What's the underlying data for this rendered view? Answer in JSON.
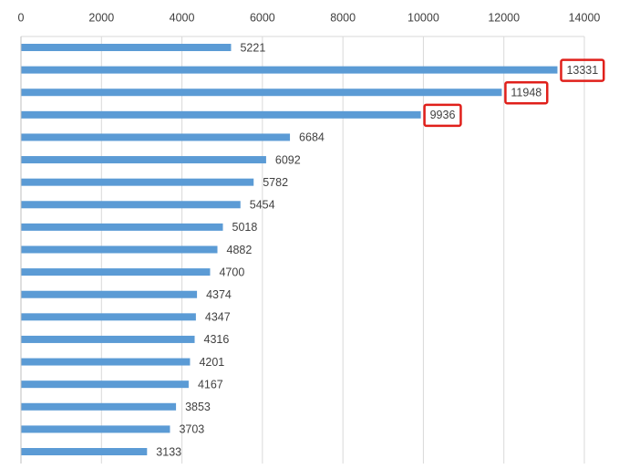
{
  "chart_data": {
    "type": "barh",
    "categories": [
      null,
      null,
      null,
      null,
      null,
      null,
      null,
      null,
      null,
      null,
      null,
      null,
      null,
      null,
      null,
      null,
      null,
      null,
      null
    ],
    "values": [
      5221,
      13331,
      11948,
      9936,
      6684,
      6092,
      5782,
      5454,
      5018,
      4882,
      4700,
      4374,
      4347,
      4316,
      4201,
      4167,
      3853,
      3703,
      3133
    ],
    "color": "#5b9bd5",
    "xlim": [
      0,
      14000
    ],
    "xticks": [
      0,
      2000,
      4000,
      6000,
      8000,
      10000,
      12000,
      14000
    ],
    "grid": true,
    "highlighted": [
      1,
      2,
      3
    ],
    "highlight_color": "#e0201b"
  }
}
